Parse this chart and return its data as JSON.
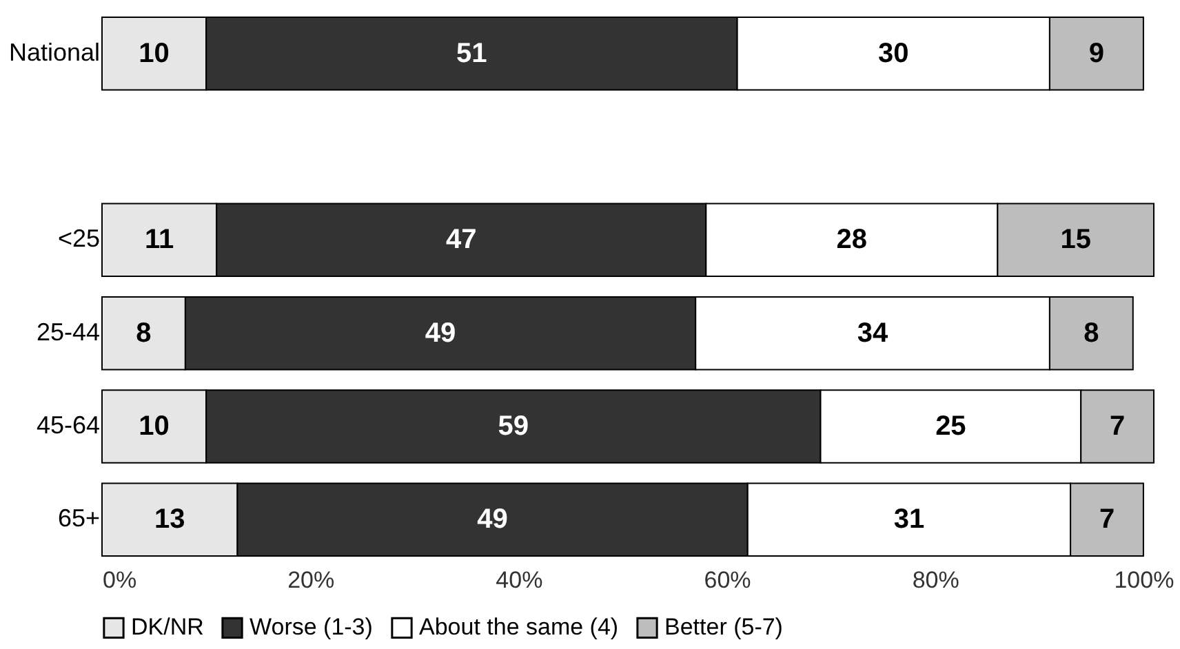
{
  "chart_data": {
    "type": "bar",
    "orientation": "horizontal",
    "stacked": true,
    "categories": [
      "National",
      null,
      "<25",
      "25-44",
      "45-64",
      "65+"
    ],
    "series": [
      {
        "name": "DK/NR",
        "color": "#e6e6e6",
        "values": [
          10,
          null,
          11,
          8,
          10,
          13
        ]
      },
      {
        "name": "Worse (1-3)",
        "color": "#333333",
        "values": [
          51,
          null,
          47,
          49,
          59,
          49
        ]
      },
      {
        "name": "About the same (4)",
        "color": "#ffffff",
        "values": [
          30,
          null,
          28,
          34,
          25,
          31
        ]
      },
      {
        "name": "Better (5-7)",
        "color": "#bdbdbd",
        "values": [
          9,
          null,
          15,
          8,
          7,
          7
        ]
      }
    ],
    "xlim": [
      0,
      101
    ],
    "xticks": [
      {
        "value": 0,
        "label": "0%"
      },
      {
        "value": 20,
        "label": "20%"
      },
      {
        "value": 40,
        "label": "40%"
      },
      {
        "value": 60,
        "label": "60%"
      },
      {
        "value": 80,
        "label": "80%"
      },
      {
        "value": 100,
        "label": "100%"
      }
    ],
    "data_labels": true,
    "legend": "bottom",
    "grid": false
  }
}
